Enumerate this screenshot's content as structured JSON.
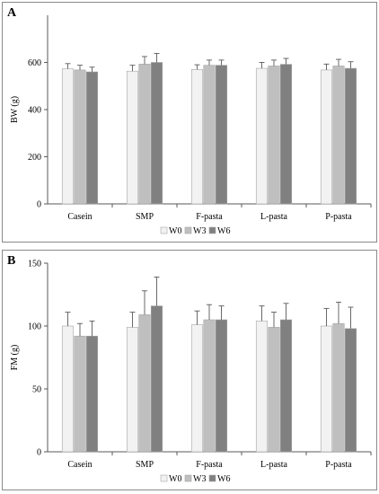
{
  "chart_data": [
    {
      "panel_label": "A",
      "type": "bar",
      "categories": [
        "Casein",
        "SMP",
        "F-pasta",
        "L-pasta",
        "P-pasta"
      ],
      "series": [
        {
          "name": "W0",
          "color": "#f2f2f2",
          "values": [
            573,
            563,
            570,
            575,
            568
          ],
          "errors": [
            22,
            25,
            20,
            25,
            25
          ]
        },
        {
          "name": "W3",
          "color": "#bfbfbf",
          "values": [
            568,
            593,
            588,
            585,
            585
          ],
          "errors": [
            20,
            32,
            22,
            25,
            28
          ]
        },
        {
          "name": "W6",
          "color": "#808080",
          "values": [
            560,
            600,
            588,
            592,
            575
          ],
          "errors": [
            20,
            38,
            22,
            25,
            28
          ]
        }
      ],
      "title": "",
      "xlabel": "",
      "ylabel": "BW (g)",
      "ylim": [
        0,
        800
      ],
      "yticks": [
        0,
        200,
        400,
        600
      ],
      "grid": false,
      "legend_position": "bottom-center"
    },
    {
      "panel_label": "B",
      "type": "bar",
      "categories": [
        "Casein",
        "SMP",
        "F-pasta",
        "L-pasta",
        "P-pasta"
      ],
      "series": [
        {
          "name": "W0",
          "color": "#f2f2f2",
          "values": [
            100,
            99,
            101,
            104,
            100
          ],
          "errors": [
            11,
            12,
            11,
            12,
            14
          ]
        },
        {
          "name": "W3",
          "color": "#bfbfbf",
          "values": [
            92,
            109,
            105,
            99,
            102
          ],
          "errors": [
            10,
            19,
            12,
            12,
            17
          ]
        },
        {
          "name": "W6",
          "color": "#808080",
          "values": [
            92,
            116,
            105,
            105,
            98
          ],
          "errors": [
            12,
            23,
            11,
            13,
            17
          ]
        }
      ],
      "title": "",
      "xlabel": "",
      "ylabel": "FM (g)",
      "ylim": [
        0,
        150
      ],
      "yticks": [
        0,
        50,
        100,
        150
      ],
      "grid": false,
      "legend_position": "bottom-center"
    }
  ]
}
